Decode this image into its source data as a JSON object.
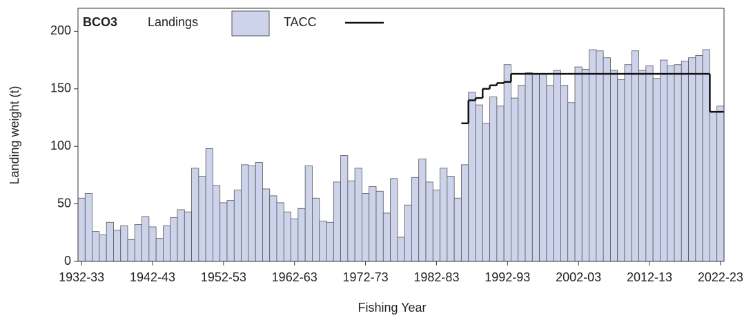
{
  "chart_data": {
    "type": "bar",
    "legend_title": "BCO3",
    "x_label": "Fishing Year",
    "y_label": "Landing weight (t)",
    "categories": [
      "1932-33",
      null,
      null,
      null,
      null,
      null,
      null,
      null,
      null,
      null,
      "1942-43",
      null,
      null,
      null,
      null,
      null,
      null,
      null,
      null,
      null,
      "1952-53",
      null,
      null,
      null,
      null,
      null,
      null,
      null,
      null,
      null,
      "1962-63",
      null,
      null,
      null,
      null,
      null,
      null,
      null,
      null,
      null,
      "1972-73",
      null,
      null,
      null,
      null,
      null,
      null,
      null,
      null,
      null,
      "1982-83",
      null,
      null,
      null,
      null,
      null,
      null,
      null,
      null,
      null,
      "1992-93",
      null,
      null,
      null,
      null,
      null,
      null,
      null,
      null,
      null,
      "2002-03",
      null,
      null,
      null,
      null,
      null,
      null,
      null,
      null,
      null,
      "2012-13",
      null,
      null,
      null,
      null,
      null,
      null,
      null,
      null,
      null,
      "2022-23"
    ],
    "series": [
      {
        "name": "Landings",
        "color": "#cdd3ea",
        "values": [
          55,
          59,
          26,
          23,
          34,
          27,
          31,
          19,
          32,
          39,
          30,
          20,
          31,
          38,
          45,
          43,
          81,
          74,
          98,
          66,
          51,
          53,
          62,
          84,
          83,
          86,
          63,
          57,
          51,
          43,
          37,
          46,
          83,
          55,
          35,
          34,
          69,
          92,
          70,
          81,
          59,
          65,
          61,
          42,
          72,
          21,
          49,
          73,
          89,
          69,
          62,
          81,
          74,
          55,
          84,
          147,
          136,
          120,
          143,
          135,
          171,
          142,
          153,
          164,
          163,
          163,
          153,
          166,
          153,
          138,
          169,
          167,
          184,
          183,
          177,
          166,
          158,
          171,
          183,
          166,
          170,
          159,
          175,
          170,
          171,
          174,
          177,
          179,
          184,
          130,
          135
        ]
      },
      {
        "name": "TACC",
        "color": "#111111",
        "values": [
          null,
          null,
          null,
          null,
          null,
          null,
          null,
          null,
          null,
          null,
          null,
          null,
          null,
          null,
          null,
          null,
          null,
          null,
          null,
          null,
          null,
          null,
          null,
          null,
          null,
          null,
          null,
          null,
          null,
          null,
          null,
          null,
          null,
          null,
          null,
          null,
          null,
          null,
          null,
          null,
          null,
          null,
          null,
          null,
          null,
          null,
          null,
          null,
          null,
          null,
          null,
          null,
          null,
          null,
          120,
          140,
          142,
          150,
          153,
          155,
          156,
          163,
          163,
          163,
          163,
          163,
          163,
          163,
          163,
          163,
          163,
          163,
          163,
          163,
          163,
          163,
          163,
          163,
          163,
          163,
          163,
          163,
          163,
          163,
          163,
          163,
          163,
          163,
          163,
          130,
          130
        ]
      }
    ],
    "ylim": [
      0,
      220
    ],
    "yticks": [
      0,
      50,
      100,
      150,
      200
    ]
  }
}
